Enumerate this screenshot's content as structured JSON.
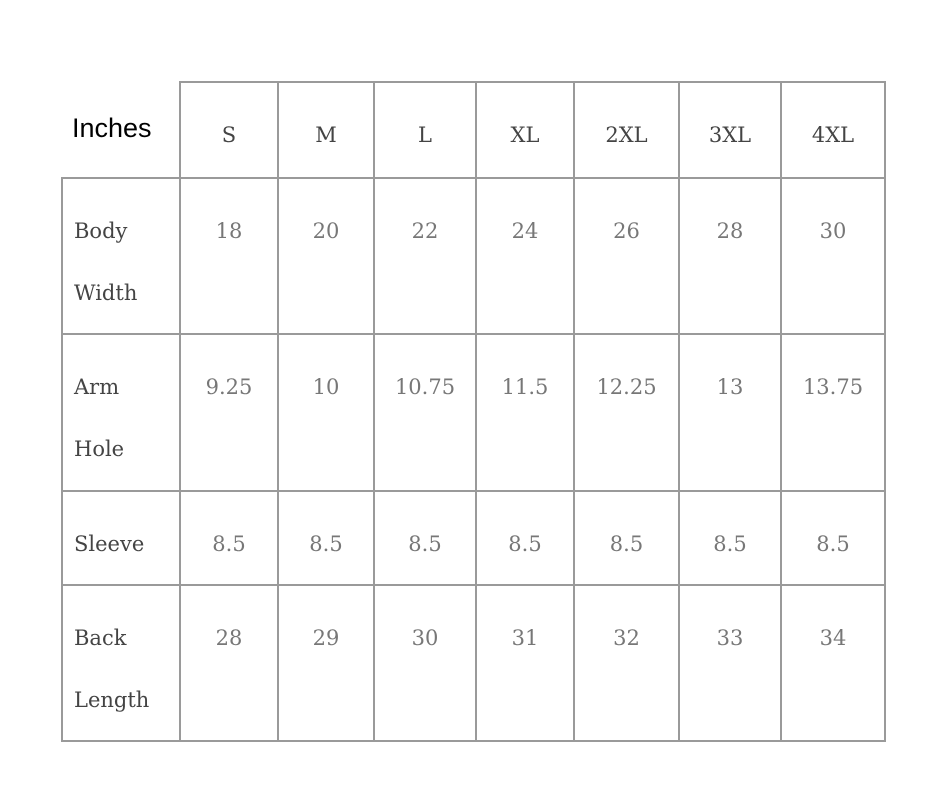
{
  "unit_label": "Inches",
  "sizes": [
    "S",
    "M",
    "L",
    "XL",
    "2XL",
    "3XL",
    "4XL"
  ],
  "rows": [
    {
      "label": [
        "Body",
        "Width"
      ],
      "values": [
        "18",
        "20",
        "22",
        "24",
        "26",
        "28",
        "30"
      ]
    },
    {
      "label": [
        "Arm",
        "Hole"
      ],
      "values": [
        "9.25",
        "10",
        "10.75",
        "11.5",
        "12.25",
        "13",
        "13.75"
      ]
    },
    {
      "label": [
        "Sleeve"
      ],
      "values": [
        "8.5",
        "8.5",
        "8.5",
        "8.5",
        "8.5",
        "8.5",
        "8.5"
      ]
    },
    {
      "label": [
        "Back",
        "Length"
      ],
      "values": [
        "28",
        "29",
        "30",
        "31",
        "32",
        "33",
        "34"
      ]
    }
  ]
}
